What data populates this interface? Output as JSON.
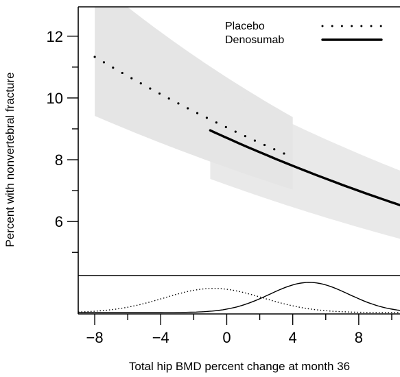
{
  "chart_data": {
    "type": "line",
    "xlabel": "Total hip BMD percent change at month 36",
    "ylabel": "Percent with nonvertebral fracture",
    "xlim": [
      -9.0,
      10.5
    ],
    "ylim": [
      4.25,
      12.95
    ],
    "x_ticks": [
      -8,
      -4,
      0,
      4,
      8
    ],
    "x_tick_labels": [
      "−8",
      "−4",
      "0",
      "4",
      "8"
    ],
    "x_minor_ticks": [
      -6,
      -2,
      2,
      6,
      10
    ],
    "y_ticks": [
      6,
      8,
      10,
      12
    ],
    "y_tick_labels": [
      "6",
      "8",
      "10",
      "12"
    ],
    "y_minor_ticks": [
      5,
      7,
      9,
      11
    ],
    "legend": {
      "position": "top-right",
      "entries": [
        {
          "label": "Placebo",
          "style": "dotted"
        },
        {
          "label": "Denosumab",
          "style": "solid"
        }
      ]
    },
    "series": [
      {
        "name": "Placebo",
        "style": "dotted",
        "x": [
          -8.0,
          4.0
        ],
        "y": [
          11.33,
          8.08
        ],
        "ci_lower": [
          9.42,
          7.03
        ],
        "ci_upper": [
          13.8,
          9.38
        ]
      },
      {
        "name": "Denosumab",
        "style": "solid",
        "x": [
          -1.0,
          10.5
        ],
        "y": [
          8.95,
          6.53
        ],
        "ci_lower": [
          7.38,
          5.44
        ],
        "ci_upper": [
          10.51,
          7.65
        ]
      }
    ],
    "density_panel": {
      "xlim": [
        -9.0,
        10.5
      ],
      "series": [
        {
          "name": "Placebo",
          "style": "dotted",
          "mean": -0.8,
          "sd": 3.0
        },
        {
          "name": "Denosumab",
          "style": "solid",
          "mean": 5.0,
          "sd": 2.4
        }
      ]
    },
    "colors": {
      "line": "#000000",
      "band": "#e5e5e5"
    }
  }
}
